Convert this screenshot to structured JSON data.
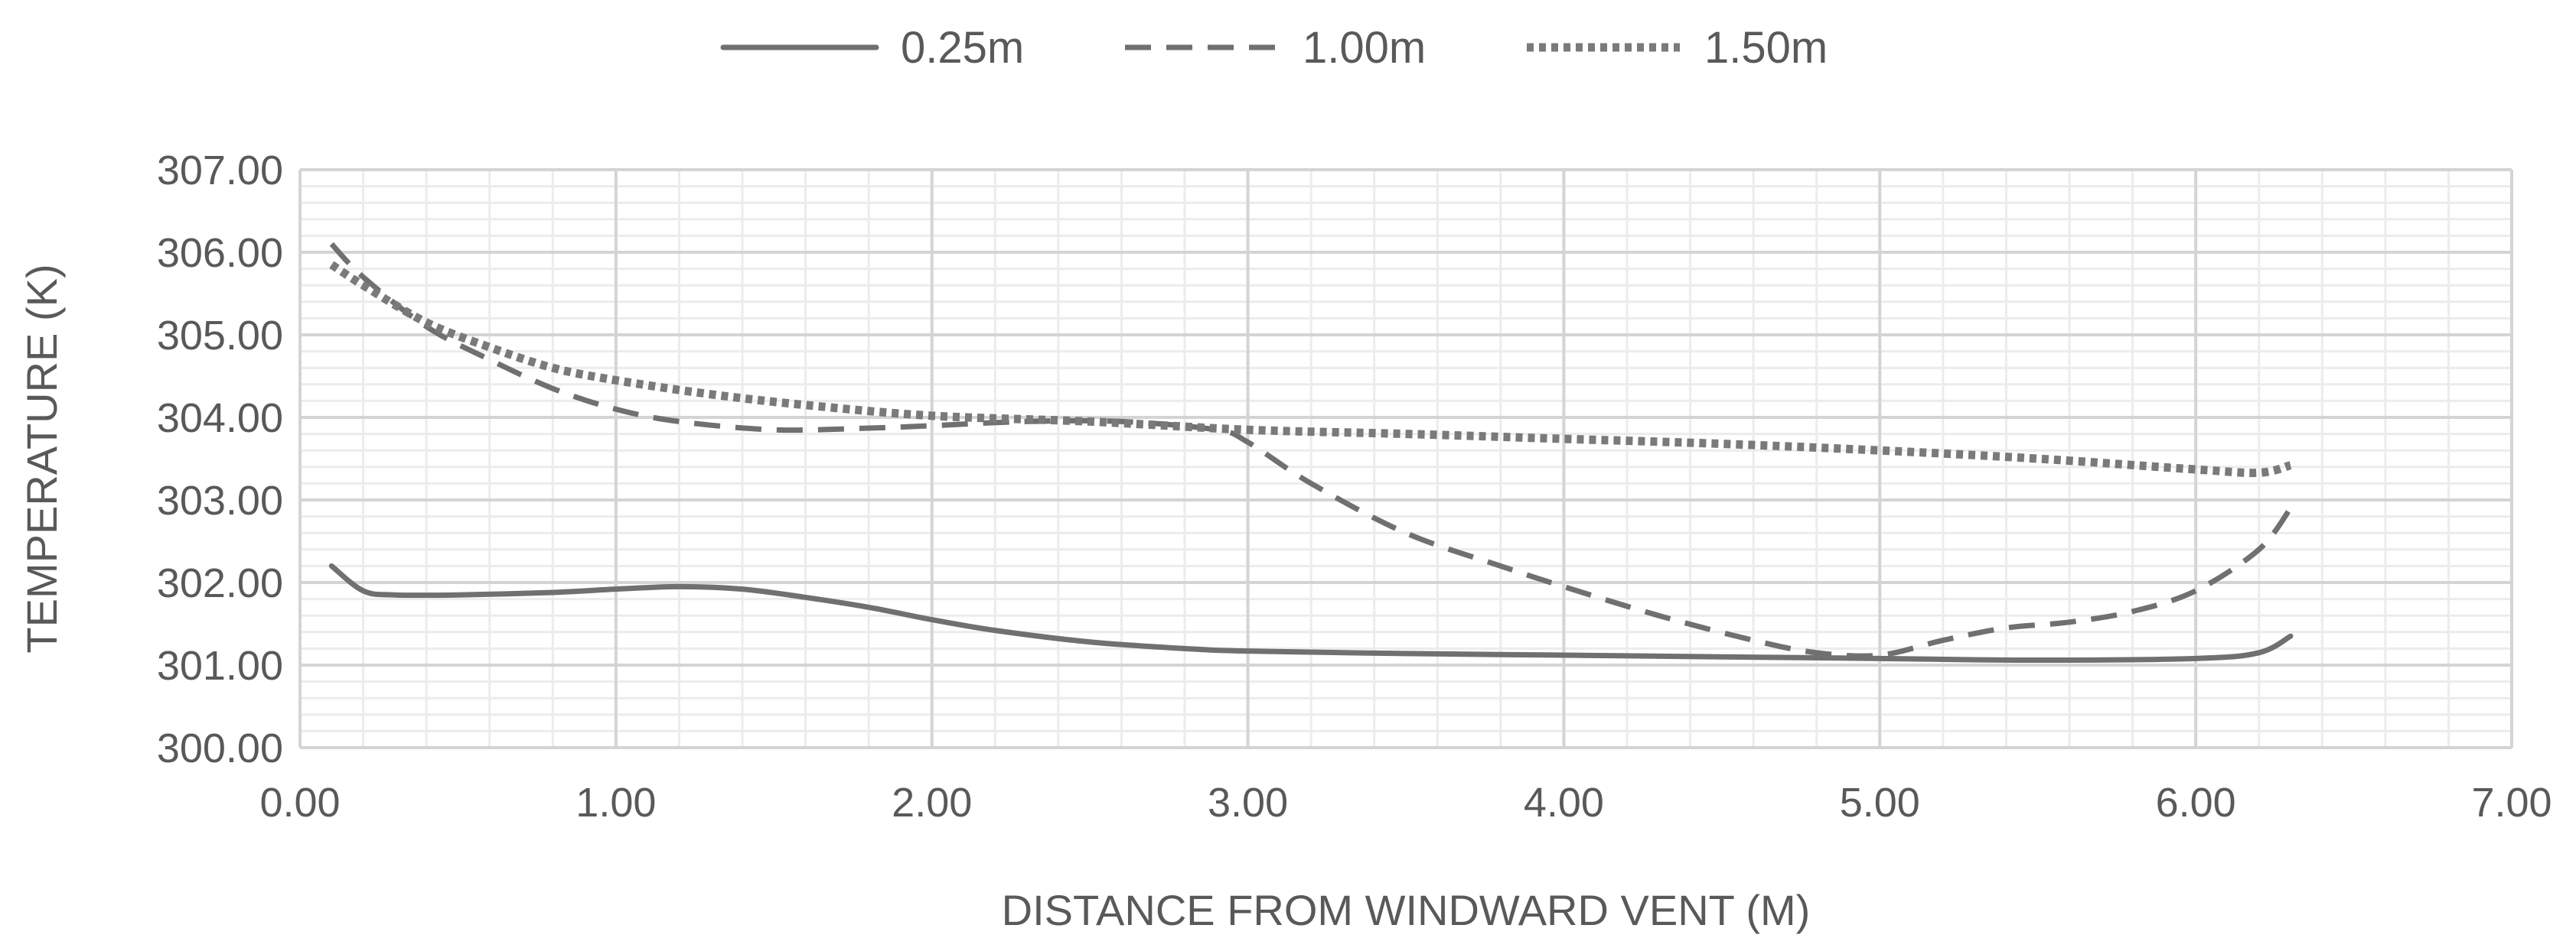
{
  "chart_data": {
    "type": "line",
    "title": "",
    "xlabel": "DISTANCE FROM WINDWARD VENT (M)",
    "ylabel": "TEMPERATURE (K)",
    "xlim": [
      0,
      7
    ],
    "ylim": [
      300,
      307
    ],
    "x_ticks": [
      "0.00",
      "1.00",
      "2.00",
      "3.00",
      "4.00",
      "5.00",
      "6.00",
      "7.00"
    ],
    "y_ticks": [
      "300.00",
      "301.00",
      "302.00",
      "303.00",
      "304.00",
      "305.00",
      "306.00",
      "307.00"
    ],
    "grid": true,
    "legend_position": "top",
    "series": [
      {
        "name": "0.25m",
        "style": "solid",
        "color": "#707070",
        "points": [
          [
            0.1,
            302.2
          ],
          [
            0.2,
            301.9
          ],
          [
            0.3,
            301.85
          ],
          [
            0.5,
            301.85
          ],
          [
            0.8,
            301.88
          ],
          [
            1.0,
            301.92
          ],
          [
            1.2,
            301.95
          ],
          [
            1.4,
            301.92
          ],
          [
            1.6,
            301.82
          ],
          [
            1.8,
            301.7
          ],
          [
            2.0,
            301.55
          ],
          [
            2.2,
            301.42
          ],
          [
            2.5,
            301.28
          ],
          [
            2.8,
            301.2
          ],
          [
            3.0,
            301.17
          ],
          [
            3.5,
            301.14
          ],
          [
            4.0,
            301.12
          ],
          [
            4.5,
            301.1
          ],
          [
            5.0,
            301.08
          ],
          [
            5.5,
            301.06
          ],
          [
            6.0,
            301.08
          ],
          [
            6.2,
            301.15
          ],
          [
            6.3,
            301.35
          ]
        ]
      },
      {
        "name": "1.00m",
        "style": "dashed",
        "color": "#707070",
        "points": [
          [
            0.1,
            306.1
          ],
          [
            0.2,
            305.7
          ],
          [
            0.4,
            305.1
          ],
          [
            0.6,
            304.7
          ],
          [
            0.8,
            304.35
          ],
          [
            1.0,
            304.1
          ],
          [
            1.2,
            303.95
          ],
          [
            1.5,
            303.85
          ],
          [
            1.8,
            303.87
          ],
          [
            2.0,
            303.9
          ],
          [
            2.3,
            303.95
          ],
          [
            2.6,
            303.95
          ],
          [
            2.9,
            303.85
          ],
          [
            3.0,
            303.7
          ],
          [
            3.2,
            303.2
          ],
          [
            3.5,
            302.6
          ],
          [
            3.8,
            302.2
          ],
          [
            4.0,
            301.95
          ],
          [
            4.3,
            301.6
          ],
          [
            4.6,
            301.3
          ],
          [
            4.8,
            301.15
          ],
          [
            5.0,
            301.12
          ],
          [
            5.2,
            301.3
          ],
          [
            5.4,
            301.45
          ],
          [
            5.6,
            301.52
          ],
          [
            5.8,
            301.65
          ],
          [
            6.0,
            301.9
          ],
          [
            6.2,
            302.4
          ],
          [
            6.3,
            302.9
          ]
        ]
      },
      {
        "name": "1.50m",
        "style": "dotted",
        "color": "#7a7a7a",
        "points": [
          [
            0.1,
            305.85
          ],
          [
            0.2,
            305.6
          ],
          [
            0.4,
            305.15
          ],
          [
            0.6,
            304.85
          ],
          [
            0.8,
            304.6
          ],
          [
            1.0,
            304.45
          ],
          [
            1.3,
            304.28
          ],
          [
            1.6,
            304.15
          ],
          [
            2.0,
            304.02
          ],
          [
            2.5,
            303.95
          ],
          [
            3.0,
            303.85
          ],
          [
            3.5,
            303.8
          ],
          [
            4.0,
            303.74
          ],
          [
            4.5,
            303.68
          ],
          [
            5.0,
            303.6
          ],
          [
            5.5,
            303.5
          ],
          [
            6.0,
            303.37
          ],
          [
            6.2,
            303.33
          ],
          [
            6.3,
            303.42
          ]
        ]
      }
    ]
  }
}
